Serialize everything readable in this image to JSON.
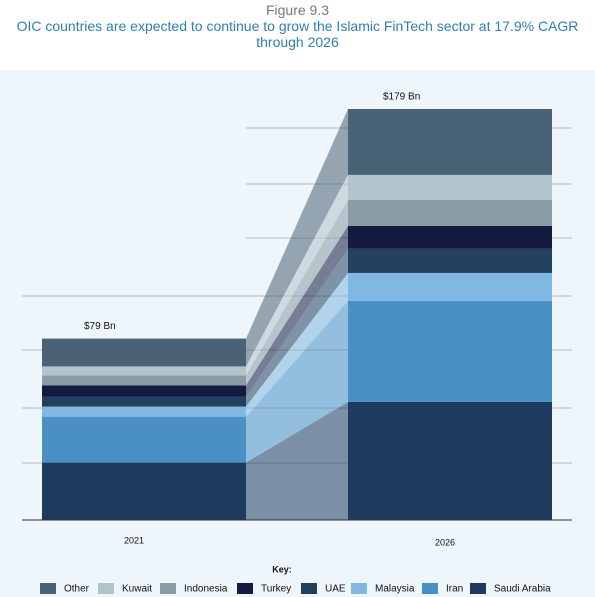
{
  "chart_data": {
    "type": "stacked-bar-flow",
    "figure_label": "Figure 9.3",
    "title": "OIC countries are expected to continue to grow the Islamic FinTech sector at 17.9% CAGR through 2026",
    "categories": [
      "2021",
      "2026"
    ],
    "series": [
      {
        "name": "Saudi Arabia",
        "color": "#1e3a5f",
        "values": [
          25,
          51.4
        ]
      },
      {
        "name": "Iran",
        "color": "#4a90c4",
        "values": [
          20,
          44
        ]
      },
      {
        "name": "Malaysia",
        "color": "#7fb8e0",
        "values": [
          4.4,
          12.2
        ]
      },
      {
        "name": "UAE",
        "color": "#22415f",
        "values": [
          4.4,
          10.5
        ]
      },
      {
        "name": "Turkey",
        "color": "#141a40",
        "values": [
          4.8,
          10
        ]
      },
      {
        "name": "Indonesia",
        "color": "#8a9ba5",
        "values": [
          4.4,
          11.3
        ]
      },
      {
        "name": "Kuwait",
        "color": "#b3c3cb",
        "values": [
          3.9,
          10.9
        ]
      },
      {
        "name": "Other",
        "color": "#4a6275",
        "values": [
          12.1,
          28.7
        ]
      }
    ],
    "totals": {
      "values": [
        79,
        179
      ],
      "value_labels": [
        "$79 Bn",
        "$179 Bn"
      ]
    },
    "legend_title": "Key:"
  }
}
